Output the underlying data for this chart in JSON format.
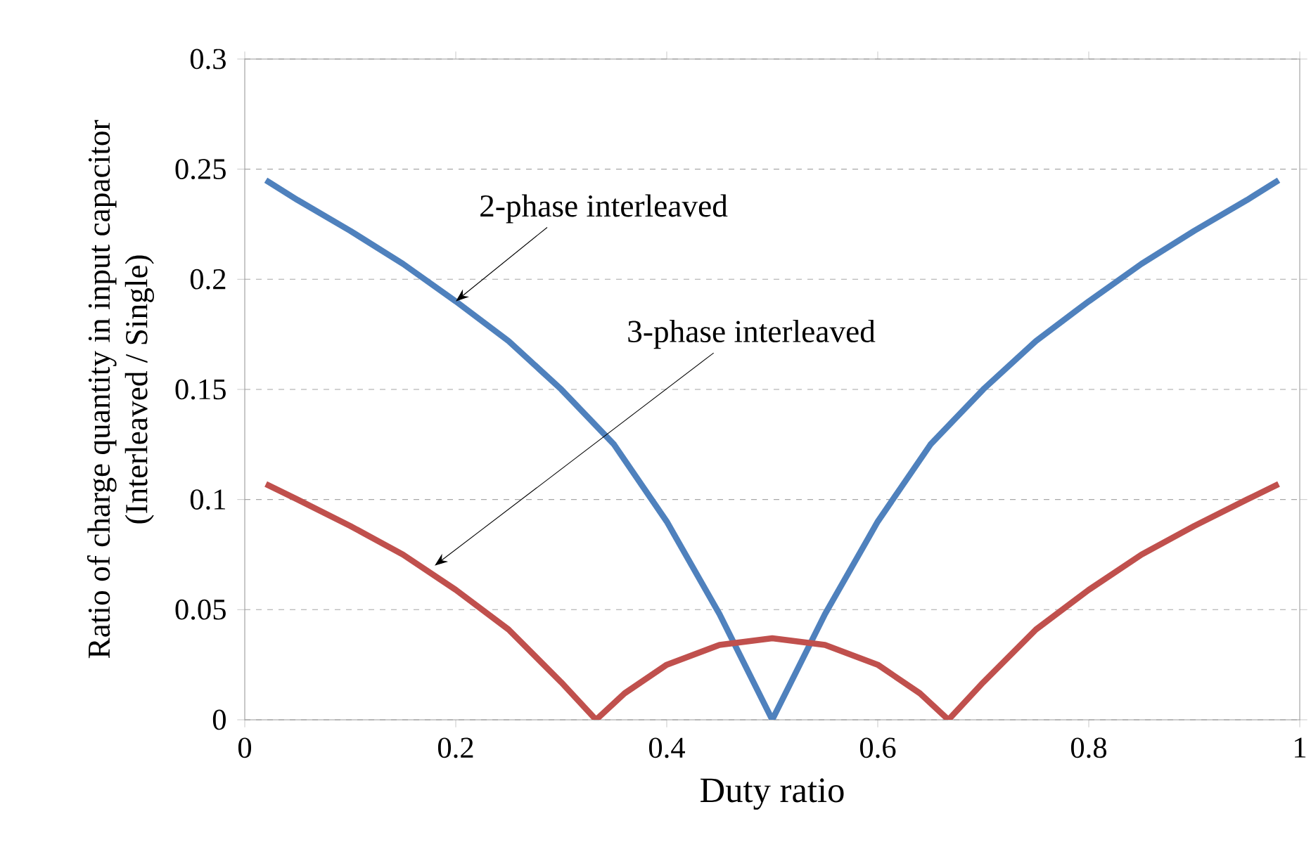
{
  "chart_data": {
    "type": "line",
    "xlabel": "Duty ratio",
    "ylabel": "Ratio of charge quantity in input capacitor (Interleaved / Single)",
    "xlim": [
      0,
      1
    ],
    "ylim": [
      0,
      0.3
    ],
    "xticks": [
      0,
      0.2,
      0.4,
      0.6,
      0.8,
      1
    ],
    "yticks": [
      0,
      0.05,
      0.1,
      0.15,
      0.2,
      0.25,
      0.3
    ],
    "grid": "y",
    "marker": "none",
    "line_style": "solid",
    "series": [
      {
        "color": "#4f81bd",
        "x": [
          0.02,
          0.05,
          0.1,
          0.15,
          0.2,
          0.25,
          0.3,
          0.35,
          0.4,
          0.45,
          0.5,
          0.55,
          0.6,
          0.65,
          0.7,
          0.75,
          0.8,
          0.85,
          0.9,
          0.95,
          0.98
        ],
        "values": [
          0.245,
          0.236,
          0.222,
          0.207,
          0.19,
          0.172,
          0.15,
          0.125,
          0.09,
          0.048,
          0,
          0.048,
          0.09,
          0.125,
          0.15,
          0.172,
          0.19,
          0.207,
          0.222,
          0.236,
          0.245
        ]
      },
      {
        "color": "#c0504d",
        "x": [
          0.02,
          0.05,
          0.1,
          0.15,
          0.2,
          0.25,
          0.3,
          0.333,
          0.36,
          0.4,
          0.45,
          0.5,
          0.55,
          0.6,
          0.64,
          0.667,
          0.7,
          0.75,
          0.8,
          0.85,
          0.9,
          0.95,
          0.98
        ],
        "values": [
          0.107,
          0.1,
          0.088,
          0.075,
          0.059,
          0.041,
          0.017,
          0,
          0.012,
          0.025,
          0.034,
          0.037,
          0.034,
          0.025,
          0.012,
          0,
          0.017,
          0.041,
          0.059,
          0.075,
          0.088,
          0.1,
          0.107
        ]
      }
    ],
    "annotations": [
      {
        "text": "2-phase interleaved",
        "x": 0.2,
        "y": 0.19
      },
      {
        "text": "3-phase interleaved",
        "x": 0.18,
        "y": 0.07
      }
    ]
  }
}
